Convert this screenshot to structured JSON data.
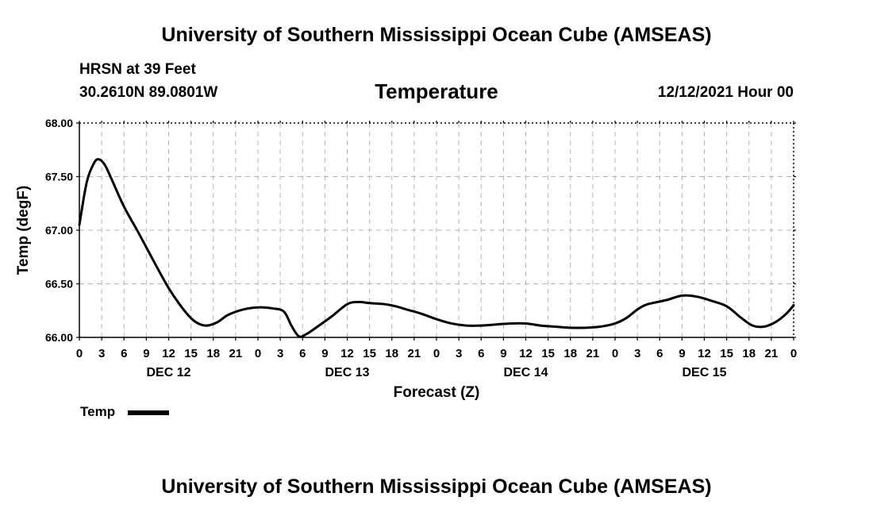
{
  "header": {
    "title": "University of Southern Mississippi Ocean Cube (AMSEAS)",
    "station": "HRSN at 39 Feet",
    "coordinates": "30.2610N  89.0801W",
    "chart_title": "Temperature",
    "date": "12/12/2021 Hour 00"
  },
  "footer": {
    "title": "University of Southern Mississippi Ocean Cube (AMSEAS)"
  },
  "legend": {
    "label": "Temp"
  },
  "chart_data": {
    "type": "line",
    "title": "Temperature",
    "xlabel": "Forecast (Z)",
    "ylabel": "Temp (degF)",
    "xlim": [
      0,
      96
    ],
    "ylim": [
      66.0,
      68.0
    ],
    "grid": true,
    "legend_position": "bottom-left",
    "y_ticks": [
      66.0,
      66.5,
      67.0,
      67.5,
      68.0
    ],
    "y_tick_labels": [
      "66.00",
      "66.50",
      "67.00",
      "67.50",
      "68.00"
    ],
    "x_ticks": [
      0,
      3,
      6,
      9,
      12,
      15,
      18,
      21,
      24,
      27,
      30,
      33,
      36,
      39,
      42,
      45,
      48,
      51,
      54,
      57,
      60,
      63,
      66,
      69,
      72,
      75,
      78,
      81,
      84,
      87,
      90,
      93,
      96
    ],
    "x_tick_labels": [
      "0",
      "3",
      "6",
      "9",
      "12",
      "15",
      "18",
      "21",
      "0",
      "3",
      "6",
      "9",
      "12",
      "15",
      "18",
      "21",
      "0",
      "3",
      "6",
      "9",
      "12",
      "15",
      "18",
      "21",
      "0",
      "3",
      "6",
      "9",
      "12",
      "15",
      "18",
      "21",
      "0"
    ],
    "day_labels": [
      {
        "label": "DEC 12",
        "x": 12
      },
      {
        "label": "DEC 13",
        "x": 36
      },
      {
        "label": "DEC 14",
        "x": 60
      },
      {
        "label": "DEC 15",
        "x": 84
      }
    ],
    "series": [
      {
        "name": "Temp",
        "color": "#000000",
        "x": [
          0,
          1,
          2,
          2.7,
          3.5,
          4.5,
          6,
          8,
          10,
          12,
          14,
          15.5,
          17,
          18.5,
          20,
          22,
          24,
          26,
          27.5,
          28.5,
          29.5,
          30.5,
          32,
          34,
          36,
          37.5,
          39,
          41,
          42.5,
          44,
          46,
          48,
          50,
          52,
          54,
          56,
          58,
          60,
          62,
          64,
          66,
          68,
          70,
          72,
          73.5,
          75,
          76,
          77,
          79,
          81,
          83,
          85,
          87,
          89,
          90.5,
          92,
          93.5,
          95,
          96
        ],
        "y": [
          67.05,
          67.45,
          67.63,
          67.66,
          67.6,
          67.45,
          67.22,
          66.97,
          66.71,
          66.46,
          66.26,
          66.15,
          66.11,
          66.14,
          66.21,
          66.26,
          66.28,
          66.27,
          66.24,
          66.11,
          66.01,
          66.03,
          66.1,
          66.2,
          66.31,
          66.33,
          66.32,
          66.31,
          66.29,
          66.26,
          66.22,
          66.17,
          66.13,
          66.11,
          66.11,
          66.12,
          66.13,
          66.13,
          66.11,
          66.1,
          66.09,
          66.09,
          66.1,
          66.13,
          66.18,
          66.26,
          66.3,
          66.32,
          66.35,
          66.39,
          66.38,
          66.34,
          66.29,
          66.18,
          66.11,
          66.1,
          66.14,
          66.22,
          66.3
        ]
      }
    ]
  }
}
